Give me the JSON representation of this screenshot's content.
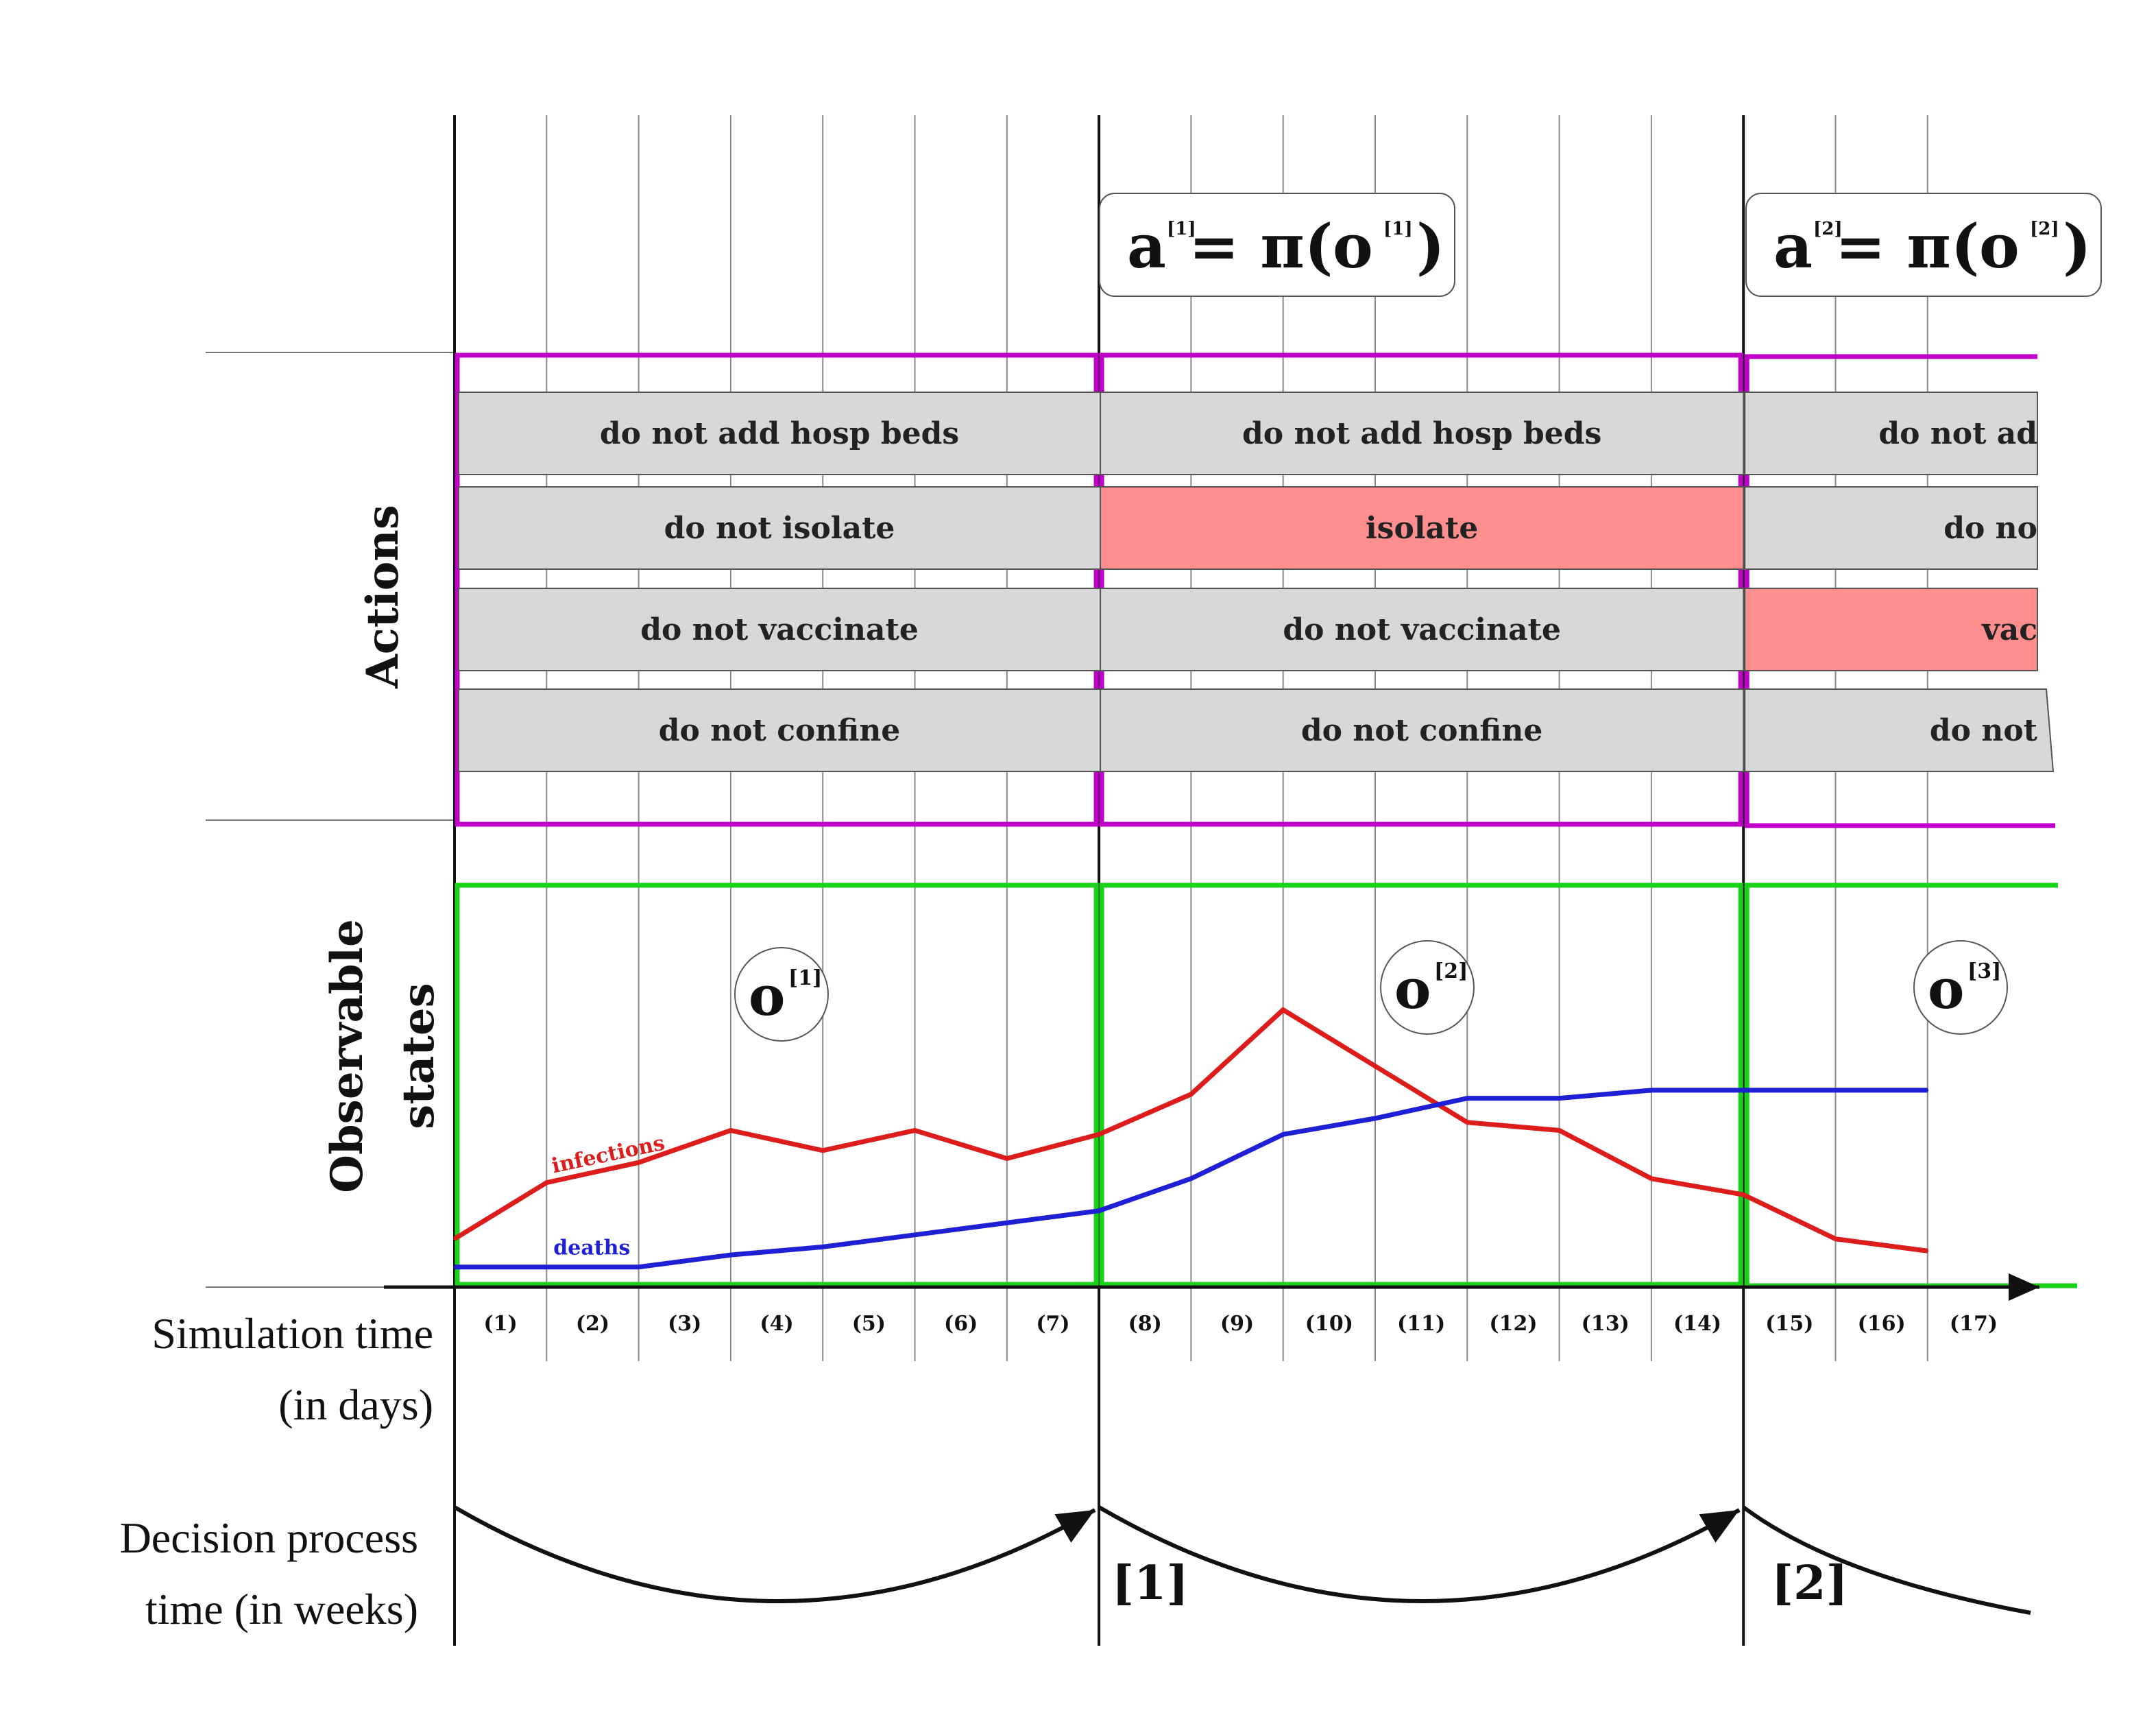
{
  "side_titles": {
    "actions": "Actions",
    "observable_line1": "Observable",
    "observable_line2": "states"
  },
  "time_axes": {
    "simulation_line1": "Simulation time",
    "simulation_line2": "(in days)",
    "decision_line1": "Decision process",
    "decision_line2": "time (in weeks)"
  },
  "days": [
    "(1)",
    "(2)",
    "(3)",
    "(4)",
    "(5)",
    "(6)",
    "(7)",
    "(8)",
    "(9)",
    "(10)",
    "(11)",
    "(12)",
    "(13)",
    "(14)",
    "(15)",
    "(16)",
    "(17)"
  ],
  "weeks": [
    "[1]",
    "[2]"
  ],
  "decision_boxes": [
    {
      "action_symbol": "a",
      "index": "[1]",
      "equals_pi": "= π(",
      "obs_symbol": "o",
      "obs_index": "[1]",
      "close": ")"
    },
    {
      "action_symbol": "a",
      "index": "[2]",
      "equals_pi": "= π(",
      "obs_symbol": "o",
      "obs_index": "[2]",
      "close": ")"
    }
  ],
  "observations": [
    {
      "symbol": "o",
      "index": "[1]"
    },
    {
      "symbol": "o",
      "index": "[2]"
    },
    {
      "symbol": "o",
      "index": "[3]"
    }
  ],
  "action_columns": [
    {
      "hosp": {
        "label": "do not add hosp beds",
        "active": false
      },
      "isolate": {
        "label": "do not isolate",
        "active": false
      },
      "vaccinate": {
        "label": "do not vaccinate",
        "active": false
      },
      "confine": {
        "label": "do not confine",
        "active": false
      }
    },
    {
      "hosp": {
        "label": "do not add hosp beds",
        "active": false
      },
      "isolate": {
        "label": "isolate",
        "active": true
      },
      "vaccinate": {
        "label": "do not vaccinate",
        "active": false
      },
      "confine": {
        "label": "do not confine",
        "active": false
      }
    },
    {
      "hosp": {
        "label": "do not ad",
        "active": false
      },
      "isolate": {
        "label": "do no",
        "active": false
      },
      "vaccinate": {
        "label": "vac",
        "active": true
      },
      "confine": {
        "label": "do not",
        "active": false
      }
    }
  ],
  "chart_data": {
    "type": "line",
    "x": [
      0,
      1,
      2,
      3,
      4,
      5,
      6,
      7,
      8,
      9,
      10,
      11,
      12,
      13,
      14,
      15,
      16
    ],
    "series": [
      {
        "name": "infections",
        "color": "#dd1c1c",
        "values": [
          12,
          26,
          31,
          39,
          34,
          39,
          32,
          38,
          48,
          69,
          55,
          41,
          39,
          27,
          23,
          12,
          9
        ]
      },
      {
        "name": "deaths",
        "color": "#1f1fd6",
        "values": [
          5,
          5,
          5,
          8,
          10,
          13,
          16,
          19,
          27,
          38,
          42,
          47,
          47,
          49,
          49,
          49,
          49
        ]
      }
    ],
    "ylim": [
      0,
      100
    ],
    "grid": true
  },
  "colors": {
    "actions_frame": "#c000c8",
    "states_frame": "#19d219",
    "action_inactive": "#d8d8d8",
    "action_active": "#ff8f8f"
  }
}
